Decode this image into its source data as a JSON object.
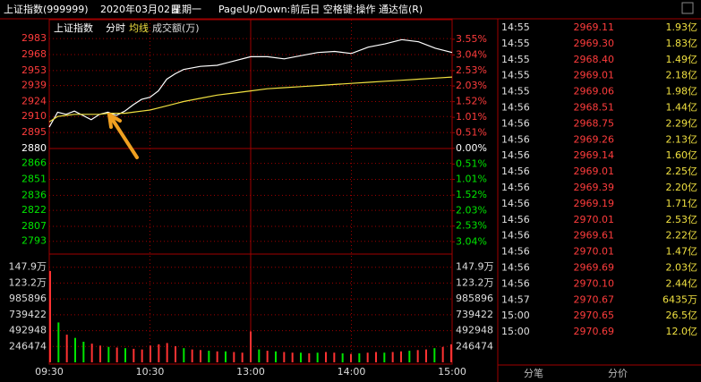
{
  "header": {
    "title": "上证指数(999999)",
    "date": "2020年03月02日",
    "weekday": "星期一",
    "hint": "PageUp/Down:前后日 空格键:操作 通达信(R)"
  },
  "chart_data": {
    "type": "line",
    "legend": [
      "上证指数",
      "分时",
      "均线",
      "成交额(万)"
    ],
    "x": [
      0,
      5,
      10,
      15,
      20,
      25,
      30,
      35,
      40,
      45,
      50,
      55,
      60,
      65,
      70,
      75,
      80,
      90,
      100,
      110,
      120,
      130,
      140,
      150,
      160,
      170,
      180,
      190,
      200,
      210,
      220,
      230,
      240
    ],
    "xlim": [
      0,
      240
    ],
    "xticks": [
      {
        "value": 0,
        "label": "09:30"
      },
      {
        "value": 60,
        "label": "10:30"
      },
      {
        "value": 120,
        "label": "13:00"
      },
      {
        "value": 180,
        "label": "14:00"
      },
      {
        "value": 240,
        "label": "15:00"
      }
    ],
    "series": [
      {
        "name": "分时",
        "color": "#ffffff",
        "values": [
          2900,
          2914,
          2912,
          2915,
          2911,
          2907,
          2912,
          2914,
          2911,
          2915,
          2921,
          2926,
          2928,
          2934,
          2945,
          2950,
          2954,
          2957,
          2958,
          2962,
          2966,
          2966,
          2964,
          2967,
          2970,
          2971,
          2969,
          2975,
          2978,
          2982,
          2980,
          2974,
          2970
        ]
      },
      {
        "name": "均线",
        "color": "#f0e040",
        "values": [
          2905,
          2910,
          2911,
          2912,
          2912,
          2912,
          2912,
          2913,
          2913,
          2913,
          2914,
          2915,
          2916,
          2918,
          2920,
          2922,
          2924,
          2927,
          2930,
          2932,
          2934,
          2936,
          2937,
          2938,
          2939,
          2940,
          2941,
          2942,
          2943,
          2944,
          2945,
          2946,
          2947
        ]
      }
    ],
    "ylim": [
      2781,
      2989
    ],
    "yticks": [
      2983,
      2968,
      2953,
      2939,
      2924,
      2910,
      2895,
      2880,
      2866,
      2851,
      2836,
      2822,
      2807,
      2793
    ],
    "y2lim": [
      -3.44,
      3.78
    ],
    "y2ticks": [
      {
        "value": 3.55,
        "label": "3.55%"
      },
      {
        "value": 3.04,
        "label": "3.04%"
      },
      {
        "value": 2.53,
        "label": "2.53%"
      },
      {
        "value": 2.03,
        "label": "2.03%"
      },
      {
        "value": 1.52,
        "label": "1.52%"
      },
      {
        "value": 1.01,
        "label": "1.01%"
      },
      {
        "value": 0.51,
        "label": "0.51%"
      },
      {
        "value": 0,
        "label": "0.00%"
      },
      {
        "value": -0.51,
        "label": "0.51%"
      },
      {
        "value": -1.01,
        "label": "1.01%"
      },
      {
        "value": -1.52,
        "label": "1.52%"
      },
      {
        "value": -2.03,
        "label": "2.03%"
      },
      {
        "value": -2.53,
        "label": "2.53%"
      },
      {
        "value": -3.04,
        "label": "3.04%"
      }
    ],
    "volume": {
      "vlim": [
        0,
        1600000
      ],
      "vticks": [
        {
          "value": 1478844,
          "label": "147.9万"
        },
        {
          "value": 1232370,
          "label": "123.2万"
        },
        985896,
        739422,
        492948,
        246474
      ],
      "values": [
        1420000,
        620000,
        430000,
        380000,
        320000,
        290000,
        260000,
        240000,
        230000,
        220000,
        210000,
        200000,
        260000,
        280000,
        300000,
        250000,
        220000,
        200000,
        190000,
        180000,
        170000,
        170000,
        160000,
        150000,
        480000,
        200000,
        180000,
        170000,
        160000,
        150000,
        150000,
        140000,
        150000,
        160000,
        150000,
        140000,
        130000,
        140000,
        150000,
        160000,
        150000,
        160000,
        170000,
        180000,
        190000,
        200000,
        220000,
        240000,
        280000
      ],
      "colors": [
        "#ff3232",
        "#00e600",
        "#ff3232",
        "#00e600",
        "#00e600",
        "#ff3232",
        "#ff3232",
        "#00e600",
        "#ff3232",
        "#00e600",
        "#ff3232",
        "#ff3232",
        "#ff3232",
        "#ff3232",
        "#ff3232",
        "#ff3232",
        "#00e600",
        "#ff3232",
        "#ff3232",
        "#00e600",
        "#ff3232",
        "#00e600",
        "#ff3232",
        "#ff3232",
        "#ff3232",
        "#00e600",
        "#ff3232",
        "#00e600",
        "#ff3232",
        "#ff3232",
        "#00e600",
        "#ff3232",
        "#00e600",
        "#ff3232",
        "#ff3232",
        "#00e600",
        "#ff3232",
        "#00e600",
        "#ff3232",
        "#ff3232",
        "#00e600",
        "#ff3232",
        "#ff3232",
        "#00e600",
        "#ff3232",
        "#ff3232",
        "#00e600",
        "#ff3232",
        "#ff3232"
      ]
    }
  },
  "ticks": {
    "rows": [
      [
        "14:55",
        "2969.11",
        "1.93亿"
      ],
      [
        "14:55",
        "2969.30",
        "1.83亿"
      ],
      [
        "14:55",
        "2968.40",
        "1.49亿"
      ],
      [
        "14:55",
        "2969.01",
        "2.18亿"
      ],
      [
        "14:55",
        "2969.06",
        "1.98亿"
      ],
      [
        "14:56",
        "2968.51",
        "1.44亿"
      ],
      [
        "14:56",
        "2968.75",
        "2.29亿"
      ],
      [
        "14:56",
        "2969.26",
        "2.13亿"
      ],
      [
        "14:56",
        "2969.14",
        "1.60亿"
      ],
      [
        "14:56",
        "2969.01",
        "2.25亿"
      ],
      [
        "14:56",
        "2969.39",
        "2.20亿"
      ],
      [
        "14:56",
        "2969.19",
        "1.71亿"
      ],
      [
        "14:56",
        "2970.01",
        "2.53亿"
      ],
      [
        "14:56",
        "2969.61",
        "2.22亿"
      ],
      [
        "14:56",
        "2970.01",
        "1.47亿"
      ],
      [
        "14:56",
        "2969.69",
        "2.03亿"
      ],
      [
        "14:56",
        "2970.10",
        "2.44亿"
      ],
      [
        "14:57",
        "2970.67",
        "6435万"
      ],
      [
        "15:00",
        "2970.65",
        "26.5亿"
      ],
      [
        "15:00",
        "2970.69",
        "12.0亿"
      ]
    ],
    "tabs": [
      "分笔",
      "分价"
    ]
  }
}
